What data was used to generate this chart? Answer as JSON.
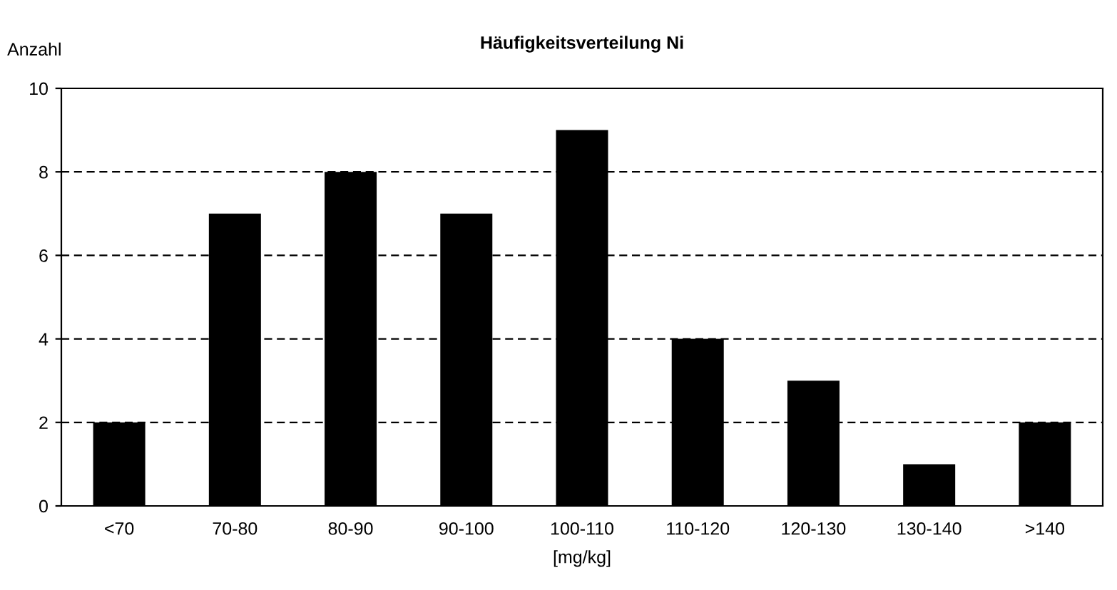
{
  "chart_data": {
    "type": "bar",
    "title": "Häufigkeitsverteilung Ni",
    "xlabel": "[mg/kg]",
    "ylabel": "Anzahl",
    "categories": [
      "<70",
      "70-80",
      "80-90",
      "90-100",
      "100-110",
      "110-120",
      "120-130",
      "130-140",
      ">140"
    ],
    "values": [
      2,
      7,
      8,
      7,
      9,
      4,
      3,
      1,
      2
    ],
    "color": "#000000",
    "ylim": [
      0,
      10
    ],
    "yticks": [
      0,
      2,
      4,
      6,
      8,
      10
    ],
    "grid": "y",
    "line_style": "dashed"
  }
}
